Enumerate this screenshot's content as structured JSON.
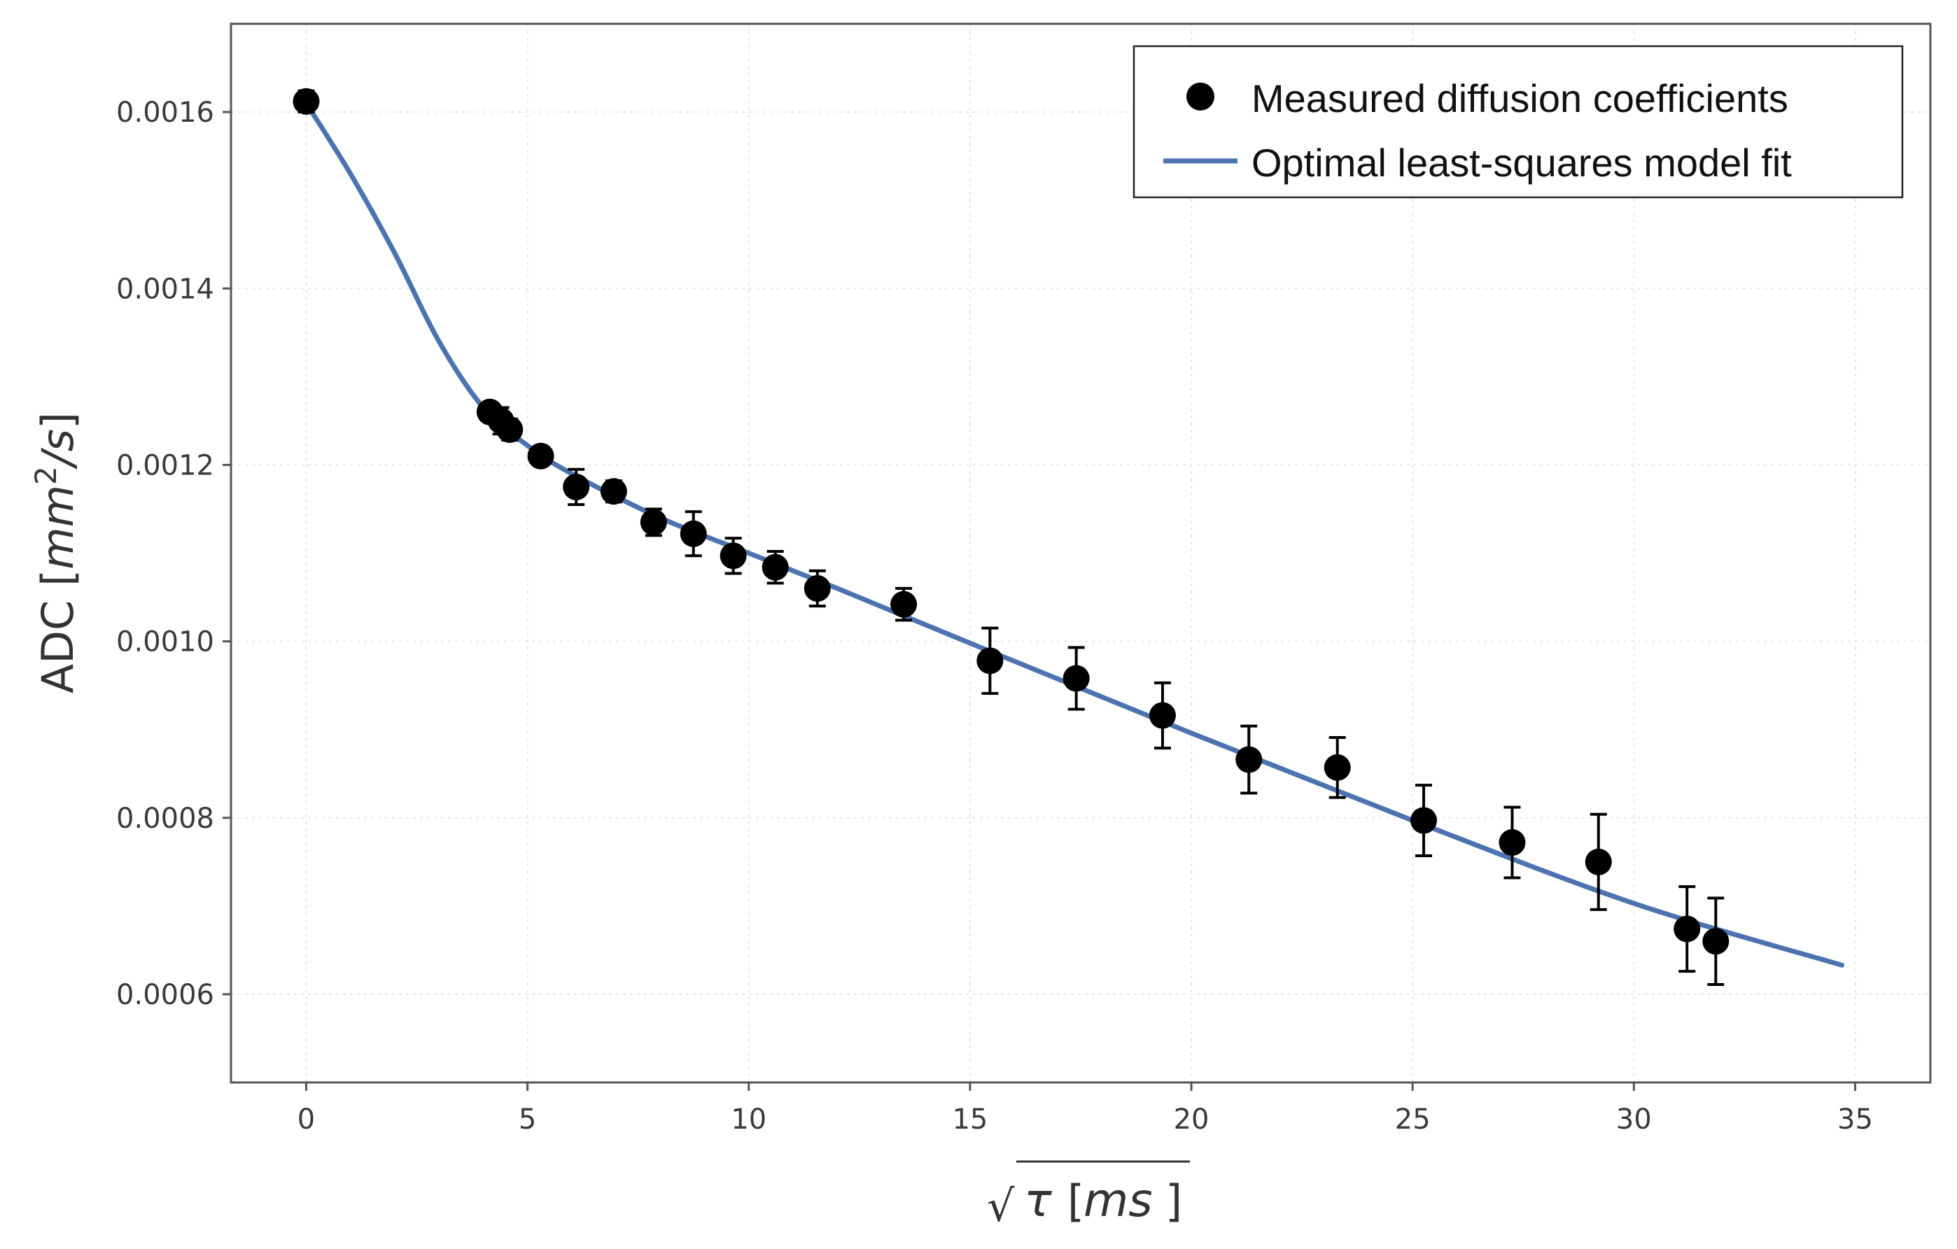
{
  "chart_data": {
    "type": "scatter",
    "title": "",
    "xlabel": {
      "prefix": "√",
      "symbol": "τ",
      "open_bracket": "[",
      "unit": "ms",
      "close_bracket": "]"
    },
    "ylabel": {
      "prefix": "ADC [",
      "unit_base": "mm",
      "unit_exp": "2",
      "unit_suffix": "/s",
      "close": "]"
    },
    "xlim": [
      -1.7,
      36.7
    ],
    "ylim": [
      0.0005,
      0.0017
    ],
    "x_ticks": [
      0,
      5,
      10,
      15,
      20,
      25,
      30,
      35
    ],
    "x_tick_labels": [
      "0",
      "5",
      "10",
      "15",
      "20",
      "25",
      "30",
      "35"
    ],
    "y_ticks": [
      0.0006,
      0.0008,
      0.001,
      0.0012,
      0.0014,
      0.0016
    ],
    "y_tick_labels": [
      "0.0006",
      "0.0008",
      "0.0010",
      "0.0012",
      "0.0014",
      "0.0016"
    ],
    "grid": true,
    "legend": {
      "position": "top-right",
      "entries": [
        {
          "label": "Measured diffusion coefficients",
          "marker": "circle"
        },
        {
          "label": "Optimal least-squares model fit",
          "marker": "line"
        }
      ]
    },
    "colors": {
      "points": "#000000",
      "fit_line": "#4c72b0",
      "axes": "#555555",
      "grid": "#e6e6e6"
    },
    "series": [
      {
        "name": "Measured diffusion coefficients",
        "kind": "scatter-errorbar",
        "x": [
          0.0,
          4.15,
          4.4,
          4.6,
          5.3,
          6.1,
          6.95,
          7.85,
          8.75,
          9.65,
          10.6,
          11.55,
          13.5,
          15.45,
          17.4,
          19.35,
          21.3,
          23.3,
          25.25,
          27.25,
          29.2,
          31.2,
          31.85
        ],
        "y": [
          0.001612,
          0.00126,
          0.00125,
          0.00124,
          0.00121,
          0.001175,
          0.00117,
          0.001135,
          0.001122,
          0.001097,
          0.001084,
          0.00106,
          0.001042,
          0.000978,
          0.000958,
          0.000916,
          0.000866,
          0.000857,
          0.000797,
          0.000772,
          0.00075,
          0.000674,
          0.00066
        ],
        "err": [
          1.2e-05,
          8e-06,
          1.5e-05,
          1.2e-05,
          1e-05,
          2e-05,
          1.2e-05,
          1.5e-05,
          2.5e-05,
          2e-05,
          1.8e-05,
          2e-05,
          1.8e-05,
          3.7e-05,
          3.5e-05,
          3.7e-05,
          3.8e-05,
          3.4e-05,
          4e-05,
          4e-05,
          5.4e-05,
          4.8e-05,
          4.9e-05
        ]
      },
      {
        "name": "Optimal least-squares model fit",
        "kind": "line",
        "x": [
          0.0,
          1.0,
          2.0,
          3.0,
          4.0,
          5.0,
          6.0,
          8.0,
          10.0,
          12.0,
          15.0,
          20.0,
          25.0,
          30.0,
          34.7
        ],
        "y": [
          0.00161,
          0.00153,
          0.00144,
          0.00134,
          0.001265,
          0.001222,
          0.00119,
          0.00114,
          0.0011,
          0.00106,
          0.000998,
          0.000896,
          0.000797,
          0.000703,
          0.000633
        ]
      }
    ]
  }
}
